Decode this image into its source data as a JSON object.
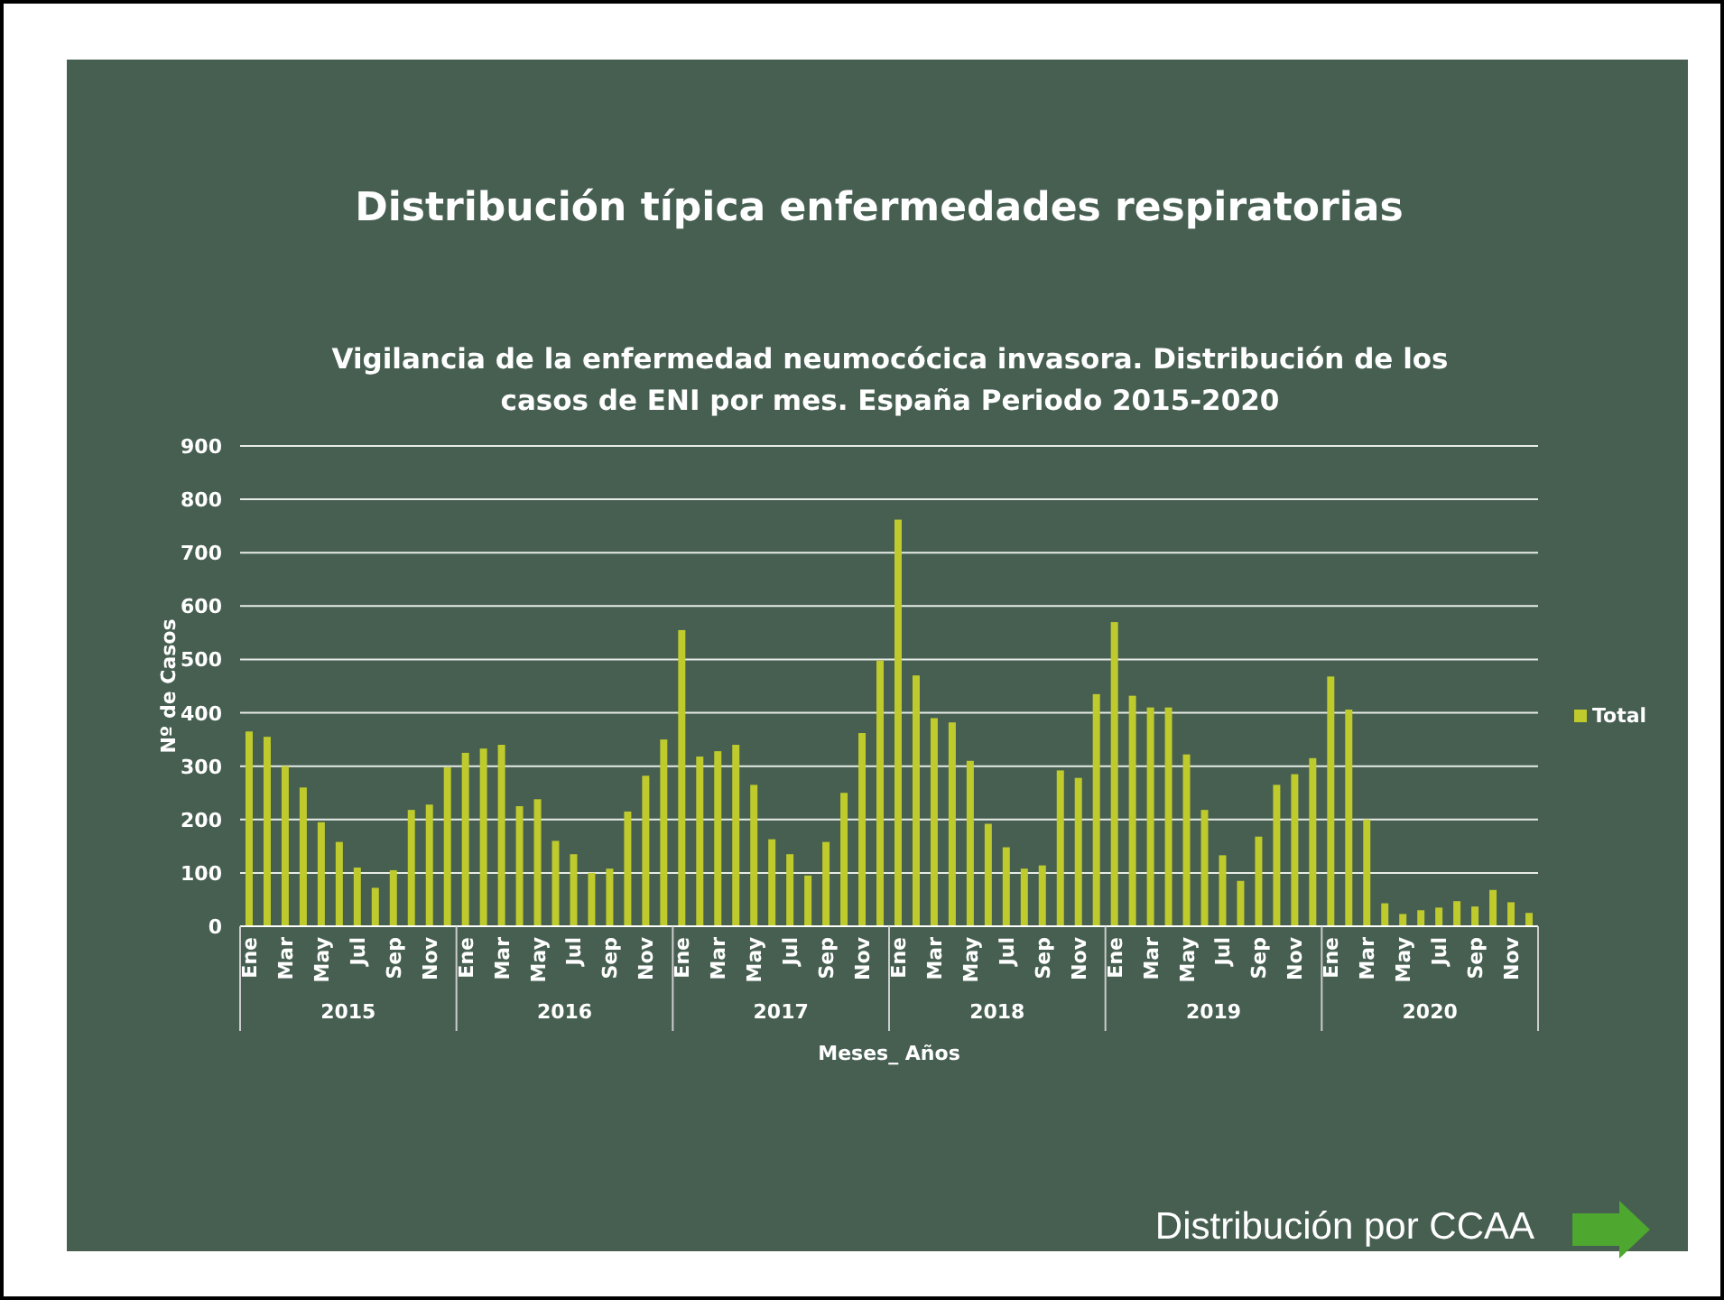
{
  "chart_data": {
    "type": "bar",
    "title": "Distribución típica enfermedades respiratorias",
    "subtitle": "Vigilancia de la enfermedad neumocócica invasora. Distribución de los casos de ENI por mes. España Periodo 2015-2020",
    "xlabel": "Meses_ Años",
    "ylabel": "Nº de Casos",
    "categories": [
      "Ene",
      null,
      "Mar",
      null,
      "May",
      null,
      "Jul",
      null,
      "Sep",
      null,
      "Nov",
      null,
      "Ene",
      null,
      "Mar",
      null,
      "May",
      null,
      "Jul",
      null,
      "Sep",
      null,
      "Nov",
      null,
      "Ene",
      null,
      "Mar",
      null,
      "May",
      null,
      "Jul",
      null,
      "Sep",
      null,
      "Nov",
      null,
      "Ene",
      null,
      "Mar",
      null,
      "May",
      null,
      "Jul",
      null,
      "Sep",
      null,
      "Nov",
      null,
      "Ene",
      null,
      "Mar",
      null,
      "May",
      null,
      "Jul",
      null,
      "Sep",
      null,
      "Nov",
      null,
      "Ene",
      null,
      "Mar",
      null,
      "May",
      null,
      "Jul",
      null,
      "Sep",
      null,
      "Nov",
      null
    ],
    "series": [
      {
        "name": "Total",
        "color": "#bfcb2c",
        "values": [
          365,
          355,
          300,
          260,
          195,
          158,
          110,
          72,
          105,
          218,
          228,
          298,
          325,
          333,
          340,
          225,
          238,
          160,
          135,
          100,
          108,
          215,
          282,
          350,
          555,
          318,
          328,
          340,
          265,
          163,
          135,
          95,
          158,
          250,
          362,
          498,
          762,
          470,
          390,
          382,
          310,
          192,
          148,
          108,
          114,
          292,
          278,
          435,
          570,
          432,
          410,
          410,
          322,
          218,
          133,
          85,
          168,
          265,
          285,
          315,
          468,
          406,
          200,
          43,
          23,
          30,
          35,
          47,
          37,
          68,
          45,
          25
        ]
      }
    ],
    "ylim": [
      0,
      900
    ],
    "yticks": [
      0,
      100,
      200,
      300,
      400,
      500,
      600,
      700,
      800,
      900
    ],
    "grid": "y",
    "legend": "right",
    "annotations": [
      "2015",
      "2016",
      "2017",
      "2018",
      "2019",
      "2020",
      "Distribución por CCAA"
    ]
  }
}
